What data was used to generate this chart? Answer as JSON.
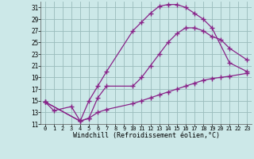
{
  "xlabel": "Windchill (Refroidissement éolien,°C)",
  "background_color": "#cce8e8",
  "line_color": "#882288",
  "grid_color": "#99bbbb",
  "xlim": [
    -0.5,
    23.5
  ],
  "ylim": [
    11,
    32
  ],
  "xticks": [
    0,
    1,
    2,
    3,
    4,
    5,
    6,
    7,
    8,
    9,
    10,
    11,
    12,
    13,
    14,
    15,
    16,
    17,
    18,
    19,
    20,
    21,
    22,
    23
  ],
  "yticks": [
    11,
    13,
    15,
    17,
    19,
    21,
    23,
    25,
    27,
    29,
    31
  ],
  "line1_x": [
    0,
    1,
    3,
    4,
    5,
    6,
    7,
    10,
    11,
    12,
    13,
    14,
    15,
    16,
    17,
    18,
    19,
    21,
    23
  ],
  "line1_y": [
    14.8,
    13.3,
    14.0,
    11.5,
    15.0,
    17.5,
    20.0,
    27.0,
    28.5,
    30.0,
    31.2,
    31.5,
    31.5,
    31.0,
    30.0,
    29.0,
    27.5,
    21.5,
    20.0
  ],
  "line2_x": [
    0,
    4,
    5,
    6,
    7,
    10,
    11,
    12,
    13,
    14,
    15,
    16,
    17,
    18,
    19,
    20,
    21,
    23
  ],
  "line2_y": [
    14.8,
    11.5,
    12.0,
    15.5,
    17.5,
    17.5,
    19.0,
    21.0,
    23.0,
    25.0,
    26.5,
    27.5,
    27.5,
    27.0,
    26.0,
    25.5,
    24.0,
    22.0
  ],
  "line3_x": [
    0,
    4,
    5,
    6,
    7,
    10,
    11,
    12,
    13,
    14,
    15,
    16,
    17,
    18,
    19,
    20,
    21,
    23
  ],
  "line3_y": [
    14.8,
    11.5,
    12.0,
    13.0,
    13.5,
    14.5,
    15.0,
    15.5,
    16.0,
    16.5,
    17.0,
    17.5,
    18.0,
    18.5,
    18.8,
    19.0,
    19.2,
    19.7
  ]
}
